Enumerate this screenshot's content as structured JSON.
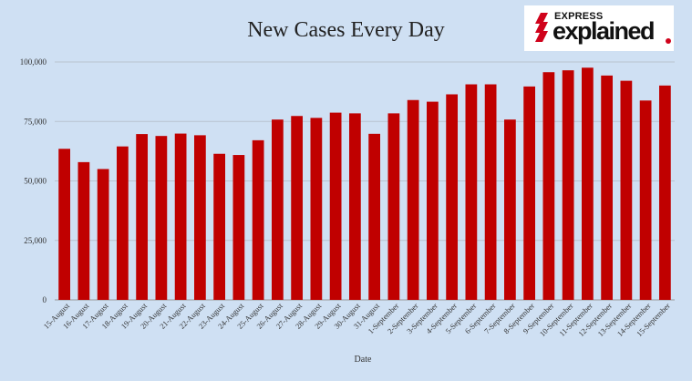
{
  "logo": {
    "top_text": "EXPRESS",
    "main_text": "explained",
    "mark_icon": "express-stripes-icon",
    "accent_color": "#d0021b"
  },
  "chart_data": {
    "type": "bar",
    "title": "New Cases Every Day",
    "xlabel": "Date",
    "ylabel": "",
    "ylim": [
      0,
      100000
    ],
    "yticks": [
      0,
      25000,
      50000,
      75000,
      100000
    ],
    "ytick_labels": [
      "0",
      "25,000",
      "50,000",
      "75,000",
      "100,000"
    ],
    "grid": true,
    "bar_color": "#c00000",
    "background_color": "#cfe0f3",
    "categories": [
      "15-August",
      "16-August",
      "17-August",
      "18-August",
      "19-August",
      "20-August",
      "21-August",
      "22-August",
      "23-August",
      "24-August",
      "25-August",
      "26-August",
      "27-August",
      "28-August",
      "29-August",
      "30-August",
      "31-August",
      "1-September",
      "2-September",
      "3-September",
      "4-September",
      "5-September",
      "6-September",
      "7-September",
      "8-September",
      "9-September",
      "10-September",
      "11-September",
      "12-September",
      "13-September",
      "14-September",
      "15-September"
    ],
    "values": [
      63500,
      57900,
      55000,
      64500,
      69700,
      68900,
      69900,
      69200,
      61400,
      60900,
      67100,
      75800,
      77300,
      76500,
      78700,
      78400,
      69800,
      78400,
      84000,
      83300,
      86400,
      90600,
      90600,
      75800,
      89700,
      95700,
      96500,
      97600,
      94300,
      92100,
      83800,
      90100
    ]
  }
}
